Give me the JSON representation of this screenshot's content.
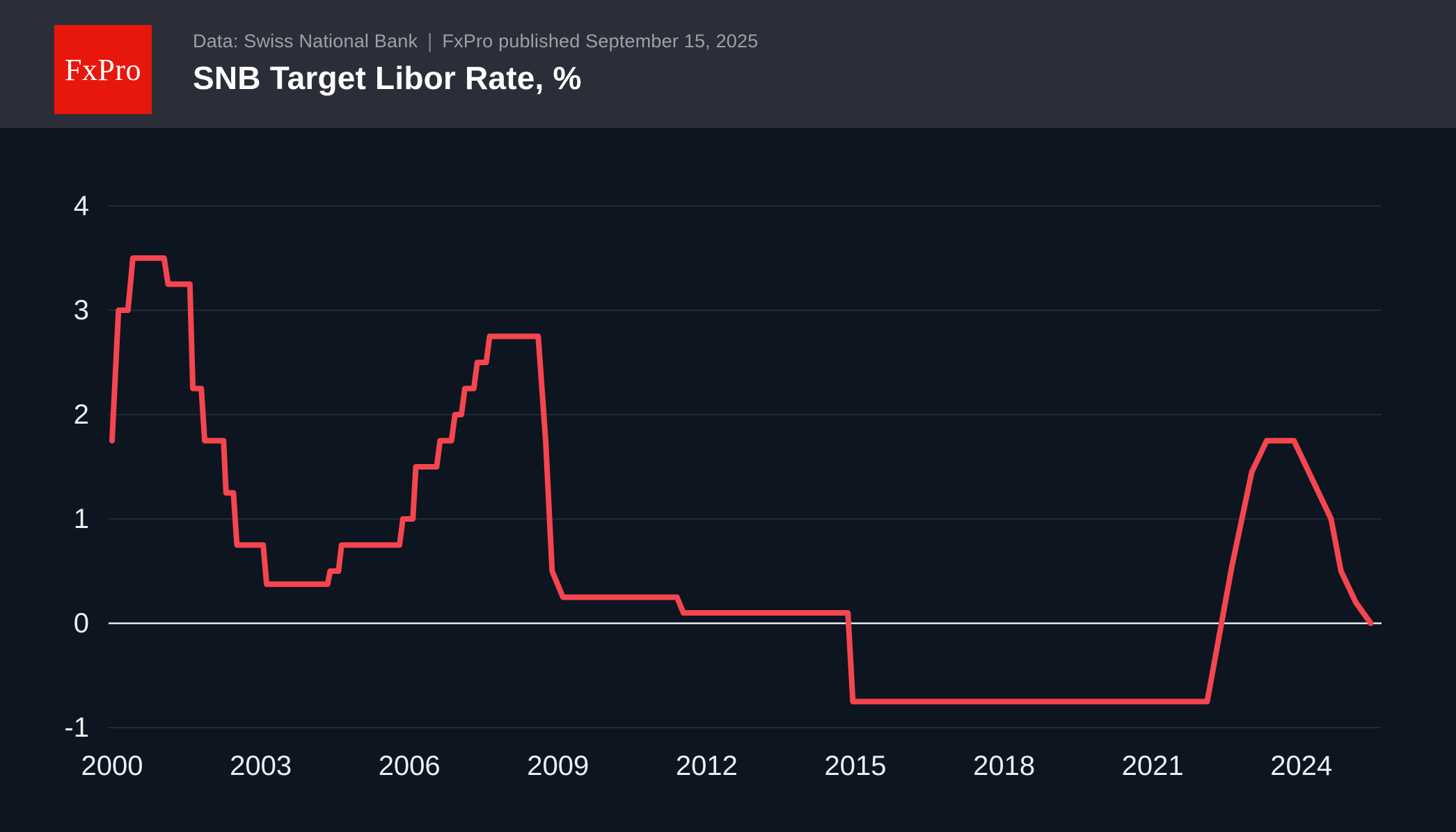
{
  "header": {
    "logo_text": "FxPro",
    "source_label": "Data: Swiss National Bank",
    "separator": "|",
    "published_label": "FxPro published September 15, 2025",
    "title": "SNB Target Libor Rate, %"
  },
  "colors": {
    "header_bg": "#2B2E38",
    "chart_bg": "#0D1520",
    "logo_red": "#E8170B",
    "line_red": "#F5454E",
    "gridline": "#2A313E",
    "zero_line": "#E9EAEE",
    "axis_label": "#EDEFF2",
    "subtitle_gray": "#9EA0A6",
    "title_white": "#FFFFFF"
  },
  "chart_data": {
    "type": "line",
    "title": "SNB Target Libor Rate, %",
    "source": "Data: Swiss National Bank",
    "published": "FxPro published September 15, 2025",
    "xlabel": "",
    "ylabel": "",
    "grid": "horizontal",
    "zero_line_emphasized": true,
    "legend": "none",
    "line_color": "#F5454E",
    "xlim": [
      2000,
      2025.6
    ],
    "ylim": [
      -1.33,
      4.75
    ],
    "x_ticks": [
      2000,
      2003,
      2006,
      2009,
      2012,
      2015,
      2018,
      2021,
      2024
    ],
    "x_tick_labels": [
      "2000",
      "2003",
      "2006",
      "2009",
      "2012",
      "2015",
      "2018",
      "2021",
      "2024"
    ],
    "y_ticks": [
      4,
      3,
      2,
      1,
      0,
      -1
    ],
    "y_tick_labels": [
      "4",
      "3",
      "2",
      "1",
      "0",
      "-1"
    ],
    "points": [
      [
        2000.0,
        1.75
      ],
      [
        2000.13,
        3.0
      ],
      [
        2000.32,
        3.0
      ],
      [
        2000.42,
        3.5
      ],
      [
        2001.05,
        3.5
      ],
      [
        2001.13,
        3.25
      ],
      [
        2001.57,
        3.25
      ],
      [
        2001.63,
        2.25
      ],
      [
        2001.8,
        2.25
      ],
      [
        2001.87,
        1.75
      ],
      [
        2002.25,
        1.75
      ],
      [
        2002.3,
        1.25
      ],
      [
        2002.45,
        1.25
      ],
      [
        2002.52,
        0.75
      ],
      [
        2003.05,
        0.75
      ],
      [
        2003.12,
        0.375
      ],
      [
        2004.35,
        0.375
      ],
      [
        2004.4,
        0.5
      ],
      [
        2004.57,
        0.5
      ],
      [
        2004.63,
        0.75
      ],
      [
        2005.8,
        0.75
      ],
      [
        2005.87,
        1.0
      ],
      [
        2006.07,
        1.0
      ],
      [
        2006.13,
        1.5
      ],
      [
        2006.55,
        1.5
      ],
      [
        2006.62,
        1.75
      ],
      [
        2006.85,
        1.75
      ],
      [
        2006.92,
        2.0
      ],
      [
        2007.05,
        2.0
      ],
      [
        2007.12,
        2.25
      ],
      [
        2007.3,
        2.25
      ],
      [
        2007.37,
        2.5
      ],
      [
        2007.55,
        2.5
      ],
      [
        2007.62,
        2.75
      ],
      [
        2008.6,
        2.75
      ],
      [
        2008.75,
        1.75
      ],
      [
        2008.88,
        0.5
      ],
      [
        2009.1,
        0.25
      ],
      [
        2011.4,
        0.25
      ],
      [
        2011.53,
        0.1
      ],
      [
        2014.85,
        0.1
      ],
      [
        2014.95,
        -0.75
      ],
      [
        2022.1,
        -0.75
      ],
      [
        2022.6,
        0.55
      ],
      [
        2023.0,
        1.45
      ],
      [
        2023.3,
        1.75
      ],
      [
        2023.85,
        1.75
      ],
      [
        2024.3,
        1.3
      ],
      [
        2024.6,
        1.0
      ],
      [
        2024.8,
        0.5
      ],
      [
        2025.1,
        0.2
      ],
      [
        2025.4,
        0.0
      ]
    ]
  }
}
